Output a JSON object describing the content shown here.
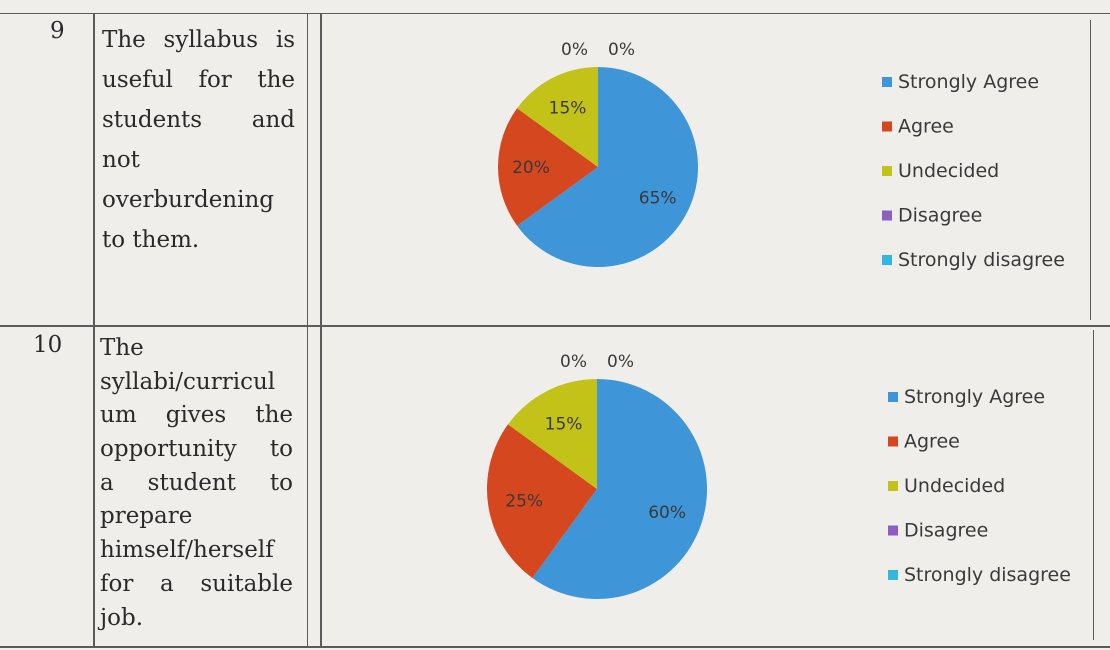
{
  "rows": [
    {
      "number": "9",
      "statement_lines": [
        "The syllabus is",
        "useful for the",
        "students and",
        "not",
        "overburdening",
        "to them."
      ],
      "chart_data": {
        "type": "pie",
        "categories": [
          "Strongly Agree",
          "Agree",
          "Undecided",
          "Disagree",
          "Strongly disagree"
        ],
        "values": [
          65,
          20,
          15,
          0,
          0
        ],
        "data_labels": [
          "65%",
          "20%",
          "15%",
          "0%",
          "0%"
        ],
        "colors": [
          "#3e95d8",
          "#d4471f",
          "#c3c218",
          "#8d5fc2",
          "#34b7dc"
        ],
        "legend_position": "right"
      }
    },
    {
      "number": "10",
      "statement_lines": [
        "The",
        "syllabi/curricul",
        "um gives the",
        "opportunity to",
        "a student to",
        "prepare",
        "himself/herself",
        "for a suitable",
        "job."
      ],
      "chart_data": {
        "type": "pie",
        "categories": [
          "Strongly Agree",
          "Agree",
          "Undecided",
          "Disagree",
          "Strongly disagree"
        ],
        "values": [
          60,
          25,
          15,
          0,
          0
        ],
        "data_labels": [
          "60%",
          "25%",
          "15%",
          "0%",
          "0%"
        ],
        "colors": [
          "#3e95d8",
          "#d4471f",
          "#c3c218",
          "#8d5fc2",
          "#34b7dc"
        ],
        "legend_position": "right"
      }
    }
  ]
}
